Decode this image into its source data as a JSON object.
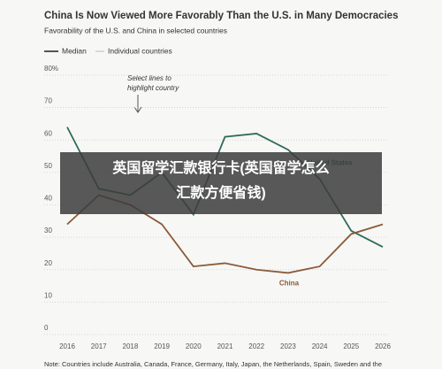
{
  "chart_data": {
    "type": "line",
    "title": "China Is Now Viewed More Favorably Than the U.S. in Many Democracies",
    "subtitle": "Favorability of the U.S. and China in selected countries",
    "legend": [
      "Median",
      "Individual countries"
    ],
    "annotation": [
      "Select lines to",
      "highlight country"
    ],
    "categories": [
      "2016",
      "2017",
      "2018",
      "2019",
      "2020",
      "2021",
      "2022",
      "2023",
      "2024",
      "2025",
      "2026"
    ],
    "series": [
      {
        "name": "United States",
        "color": "#2e6b5a",
        "values": [
          64,
          45,
          43,
          50,
          37,
          61,
          62,
          57,
          48,
          32,
          27
        ]
      },
      {
        "name": "China",
        "color": "#8a5a3a",
        "values": [
          34,
          43,
          40,
          34,
          21,
          22,
          20,
          19,
          21,
          31,
          34
        ]
      }
    ],
    "ylim": [
      0,
      80
    ],
    "yticks": [
      0,
      10,
      20,
      30,
      40,
      50,
      60,
      70,
      {
        "value": 80,
        "label": "80%"
      }
    ],
    "grid": true,
    "note": "Note: Countries include Australia, Canada, France, Germany, Italy, Japan, the Netherlands, Spain, Sweden and the",
    "banner": [
      "英国留学汇款银行卡(英国留学怎么",
      "汇款方便省钱)"
    ]
  }
}
